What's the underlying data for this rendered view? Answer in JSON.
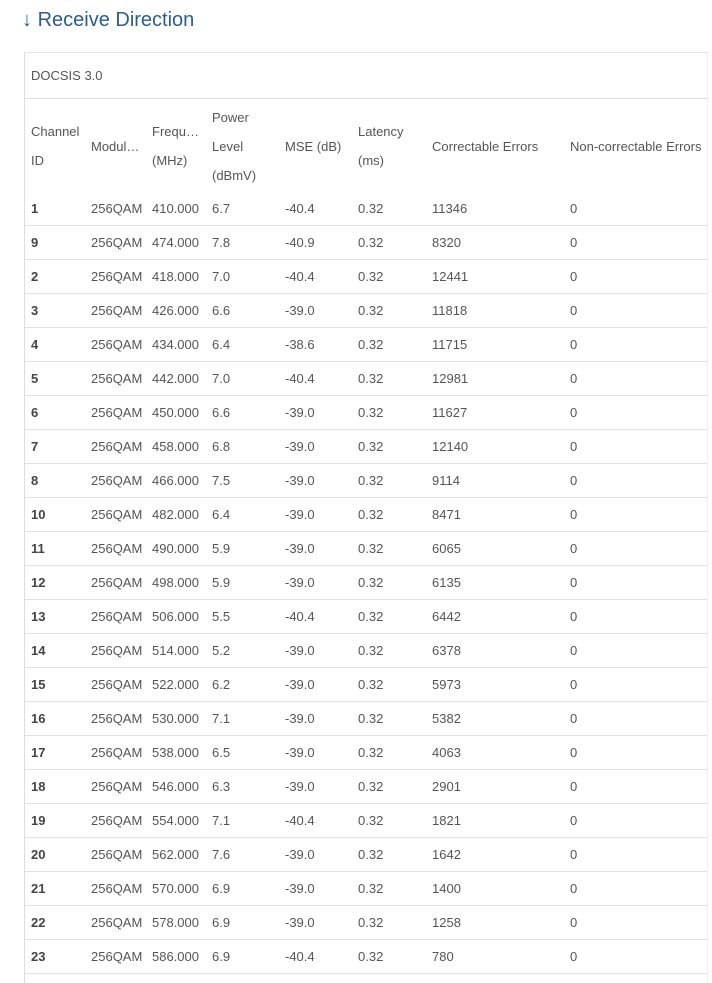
{
  "page": {
    "title": "Receive Direction",
    "title_icon": "arrow-down-icon",
    "title_arrow": "↓"
  },
  "panel": {
    "heading": "DOCSIS 3.0"
  },
  "table": {
    "headers": [
      "Channel ID",
      "Modulation",
      "Frequency (MHz)",
      "Power Level (dBmV)",
      "MSE (dB)",
      "Latency (ms)",
      "Correctable Errors",
      "Non-correctable Errors"
    ],
    "rows": [
      [
        "1",
        "256QAM",
        "410.000",
        "6.7",
        "-40.4",
        "0.32",
        "11346",
        "0"
      ],
      [
        "9",
        "256QAM",
        "474.000",
        "7.8",
        "-40.9",
        "0.32",
        "8320",
        "0"
      ],
      [
        "2",
        "256QAM",
        "418.000",
        "7.0",
        "-40.4",
        "0.32",
        "12441",
        "0"
      ],
      [
        "3",
        "256QAM",
        "426.000",
        "6.6",
        "-39.0",
        "0.32",
        "11818",
        "0"
      ],
      [
        "4",
        "256QAM",
        "434.000",
        "6.4",
        "-38.6",
        "0.32",
        "11715",
        "0"
      ],
      [
        "5",
        "256QAM",
        "442.000",
        "7.0",
        "-40.4",
        "0.32",
        "12981",
        "0"
      ],
      [
        "6",
        "256QAM",
        "450.000",
        "6.6",
        "-39.0",
        "0.32",
        "11627",
        "0"
      ],
      [
        "7",
        "256QAM",
        "458.000",
        "6.8",
        "-39.0",
        "0.32",
        "12140",
        "0"
      ],
      [
        "8",
        "256QAM",
        "466.000",
        "7.5",
        "-39.0",
        "0.32",
        "9114",
        "0"
      ],
      [
        "10",
        "256QAM",
        "482.000",
        "6.4",
        "-39.0",
        "0.32",
        "8471",
        "0"
      ],
      [
        "11",
        "256QAM",
        "490.000",
        "5.9",
        "-39.0",
        "0.32",
        "6065",
        "0"
      ],
      [
        "12",
        "256QAM",
        "498.000",
        "5.9",
        "-39.0",
        "0.32",
        "6135",
        "0"
      ],
      [
        "13",
        "256QAM",
        "506.000",
        "5.5",
        "-40.4",
        "0.32",
        "6442",
        "0"
      ],
      [
        "14",
        "256QAM",
        "514.000",
        "5.2",
        "-39.0",
        "0.32",
        "6378",
        "0"
      ],
      [
        "15",
        "256QAM",
        "522.000",
        "6.2",
        "-39.0",
        "0.32",
        "5973",
        "0"
      ],
      [
        "16",
        "256QAM",
        "530.000",
        "7.1",
        "-39.0",
        "0.32",
        "5382",
        "0"
      ],
      [
        "17",
        "256QAM",
        "538.000",
        "6.5",
        "-39.0",
        "0.32",
        "4063",
        "0"
      ],
      [
        "18",
        "256QAM",
        "546.000",
        "6.3",
        "-39.0",
        "0.32",
        "2901",
        "0"
      ],
      [
        "19",
        "256QAM",
        "554.000",
        "7.1",
        "-40.4",
        "0.32",
        "1821",
        "0"
      ],
      [
        "20",
        "256QAM",
        "562.000",
        "7.6",
        "-39.0",
        "0.32",
        "1642",
        "0"
      ],
      [
        "21",
        "256QAM",
        "570.000",
        "6.9",
        "-39.0",
        "0.32",
        "1400",
        "0"
      ],
      [
        "22",
        "256QAM",
        "578.000",
        "6.9",
        "-39.0",
        "0.32",
        "1258",
        "0"
      ],
      [
        "23",
        "256QAM",
        "586.000",
        "6.9",
        "-40.4",
        "0.32",
        "780",
        "0"
      ]
    ]
  }
}
